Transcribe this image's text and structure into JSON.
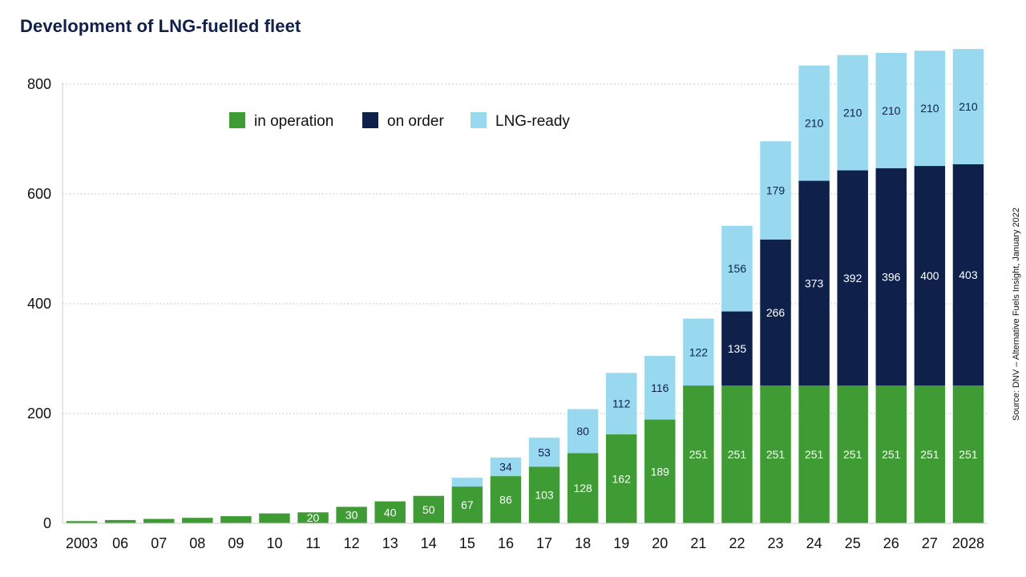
{
  "title": "Development of LNG-fuelled fleet",
  "source": "Source: DNV – Alternative Fuels Insight, January 2022",
  "chart_data": {
    "type": "bar",
    "stacked": true,
    "title": "Development of LNG-fuelled fleet",
    "categories": [
      "2003",
      "06",
      "07",
      "08",
      "09",
      "10",
      "11",
      "12",
      "13",
      "14",
      "15",
      "16",
      "17",
      "18",
      "19",
      "20",
      "21",
      "22",
      "23",
      "24",
      "25",
      "26",
      "27",
      "2028"
    ],
    "series": [
      {
        "name": "in operation",
        "color": "#3f9c35",
        "values": [
          4,
          6,
          8,
          10,
          13,
          18,
          20,
          30,
          40,
          50,
          67,
          86,
          103,
          128,
          162,
          189,
          251,
          251,
          251,
          251,
          251,
          251,
          251,
          251
        ],
        "labels": [
          "",
          "",
          "",
          "",
          "",
          "",
          "20",
          "30",
          "40",
          "50",
          "67",
          "86",
          "103",
          "128",
          "162",
          "189",
          "251",
          "251",
          "251",
          "251",
          "251",
          "251",
          "251",
          "251"
        ]
      },
      {
        "name": "on order",
        "color": "#0f204b",
        "values": [
          0,
          0,
          0,
          0,
          0,
          0,
          0,
          0,
          0,
          0,
          0,
          0,
          0,
          0,
          0,
          0,
          0,
          135,
          266,
          373,
          392,
          396,
          400,
          403
        ],
        "labels": [
          "",
          "",
          "",
          "",
          "",
          "",
          "",
          "",
          "",
          "",
          "",
          "",
          "",
          "",
          "",
          "",
          "",
          "135",
          "266",
          "373",
          "392",
          "396",
          "400",
          "403"
        ]
      },
      {
        "name": "LNG-ready",
        "color": "#99d9f0",
        "values": [
          0,
          0,
          0,
          0,
          0,
          0,
          0,
          0,
          0,
          0,
          16,
          34,
          53,
          80,
          112,
          116,
          122,
          156,
          179,
          210,
          210,
          210,
          210,
          210
        ],
        "labels": [
          "",
          "",
          "",
          "",
          "",
          "",
          "",
          "",
          "",
          "",
          "",
          "34",
          "53",
          "80",
          "112",
          "116",
          "122",
          "156",
          "179",
          "210",
          "210",
          "210",
          "210",
          "210"
        ]
      }
    ],
    "ylim": [
      0,
      800
    ],
    "yticks": [
      0,
      200,
      400,
      600,
      800
    ],
    "xlabel": "",
    "ylabel": "",
    "grid": true,
    "legend": "top-left"
  }
}
